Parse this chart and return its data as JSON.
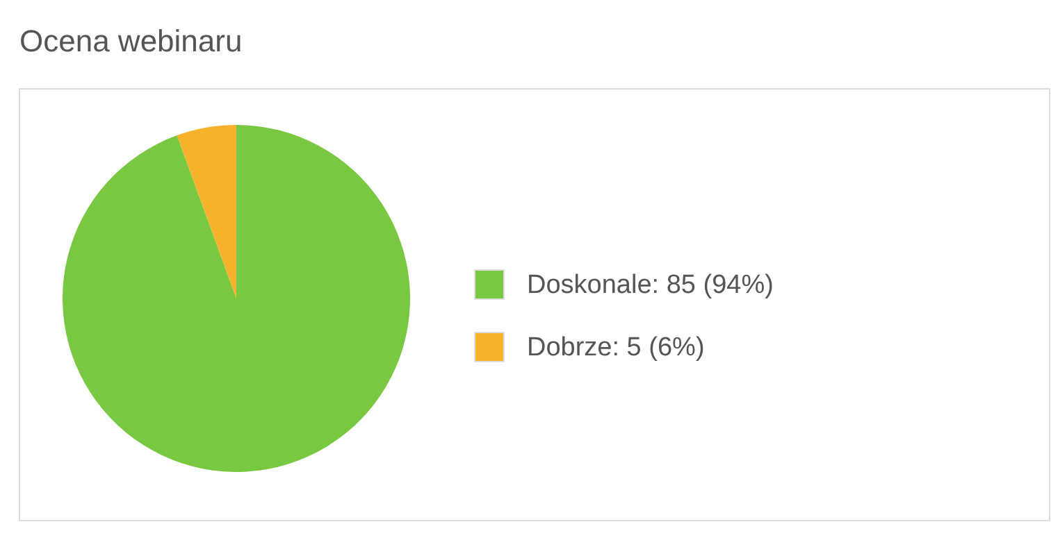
{
  "chart_data": {
    "type": "pie",
    "title": "Ocena webinaru",
    "categories": [
      "Doskonale",
      "Dobrze"
    ],
    "values": [
      85,
      5
    ],
    "colors": [
      "#78c841",
      "#f8b12c"
    ],
    "value_labels": [
      "85 (94%)",
      "5 (6%)"
    ],
    "legend": "right"
  }
}
